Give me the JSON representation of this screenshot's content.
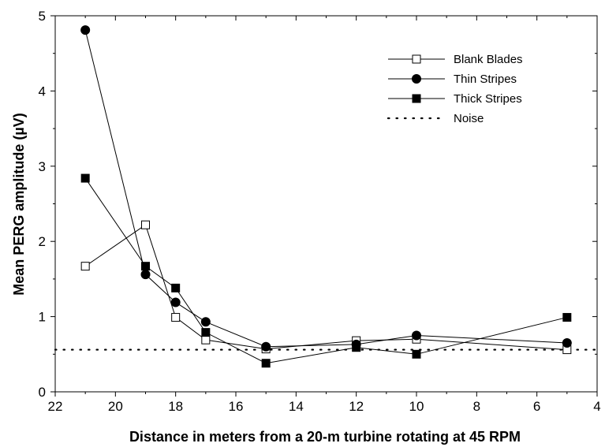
{
  "chart_data": {
    "type": "line",
    "title": "",
    "xlabel": "Distance in meters from a 20-m turbine rotating at 45 RPM",
    "ylabel": "Mean PERG amplitude (µV)",
    "xlim": [
      22,
      4
    ],
    "ylim": [
      0,
      5
    ],
    "x_reversed": true,
    "xticks": [
      22,
      20,
      18,
      16,
      14,
      12,
      10,
      8,
      6,
      4
    ],
    "yticks": [
      0,
      1,
      2,
      3,
      4,
      5
    ],
    "grid": false,
    "legend_position": "top-right",
    "x": [
      21,
      19,
      18,
      17,
      15,
      12,
      10,
      5
    ],
    "series": [
      {
        "name": "Blank Blades",
        "marker": "open-square",
        "values": [
          1.67,
          2.22,
          0.99,
          0.69,
          0.57,
          0.68,
          0.7,
          0.56
        ]
      },
      {
        "name": "Thin Stripes",
        "marker": "filled-circle",
        "values": [
          4.81,
          1.56,
          1.19,
          0.93,
          0.6,
          0.63,
          0.75,
          0.65
        ]
      },
      {
        "name": "Thick Stripes",
        "marker": "filled-square",
        "values": [
          2.84,
          1.67,
          1.38,
          0.79,
          0.38,
          0.59,
          0.5,
          0.99
        ]
      },
      {
        "name": "Noise",
        "marker": "dotted-line",
        "values": [
          0.56,
          0.56,
          0.56,
          0.56,
          0.56,
          0.56,
          0.56,
          0.56
        ]
      }
    ]
  }
}
